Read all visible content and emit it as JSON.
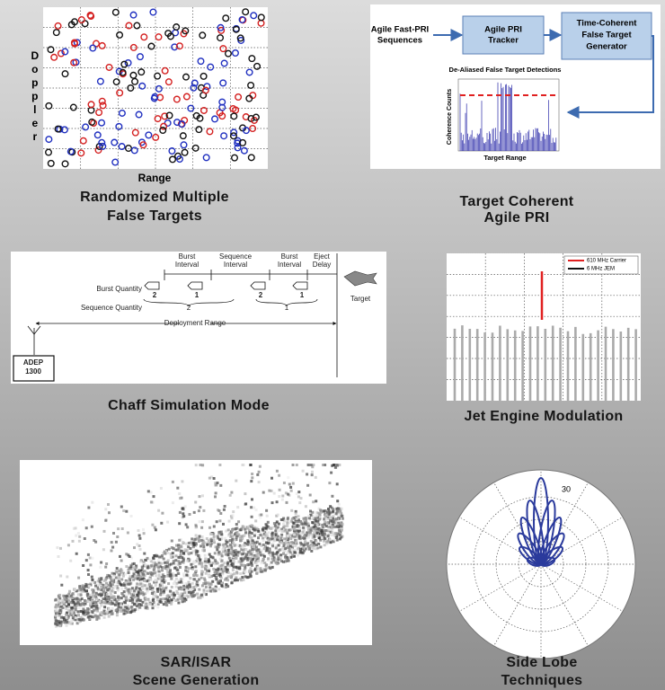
{
  "randomized": {
    "y_label": "Doppler",
    "x_label": "Range",
    "caption": [
      "Randomized Multiple",
      "False Targets"
    ]
  },
  "agile_pri": {
    "input": [
      "Agile Fast-PRI",
      "Sequences"
    ],
    "tracker": [
      "Agile PRI",
      "Tracker"
    ],
    "generator": [
      "Time-Coherent",
      "False Target",
      "Generator"
    ],
    "inset_title": "De-Aliased False Target Detections",
    "inset_y_label": "Coherence Counts",
    "inset_x_label": "Target Range",
    "caption": [
      "Target Coherent",
      "Agile PRI"
    ]
  },
  "chaff": {
    "intervals": [
      [
        "Burst",
        "Interval"
      ],
      [
        "Sequence",
        "Interval"
      ],
      [
        "Burst",
        "Interval"
      ],
      [
        "Eject",
        "Delay"
      ]
    ],
    "burst_quantity_label": "Burst Quantity",
    "burst_numbers": [
      2,
      1,
      2,
      1
    ],
    "sequence_quantity_label": "Sequence Quantity",
    "sequence_numbers": [
      2,
      1
    ],
    "deployment_range": "Deployment Range",
    "target": "Target",
    "adep": [
      "ADEP",
      "1300"
    ],
    "caption": "Chaff Simulation Mode"
  },
  "jem": {
    "legend": [
      "610 MHz Carrier",
      "6 MHz JEM"
    ],
    "caption": "Jet Engine Modulation"
  },
  "sar": {
    "caption": [
      "SAR/ISAR",
      "Scene Generation"
    ]
  },
  "side_lobe": {
    "ring_label": 30,
    "caption": [
      "Side Lobe",
      "Techniques"
    ]
  }
}
